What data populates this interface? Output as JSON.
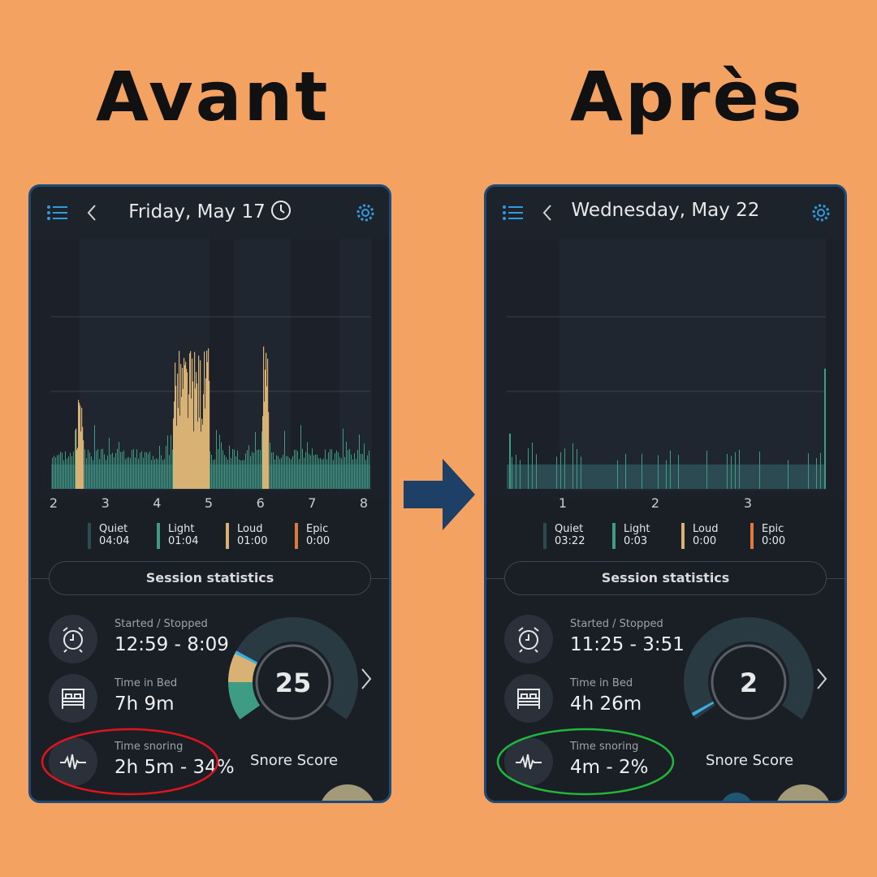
{
  "headings": {
    "before": "Avant",
    "after": "Après"
  },
  "colors": {
    "background": "#f4a261",
    "quiet": "#2c4a52",
    "light": "#3f9c84",
    "loud": "#d8b274",
    "epic": "#e07a3c",
    "marker": "#3aaee0",
    "panel_border": "#1f4a78",
    "accent_icon": "#2f9be0"
  },
  "panels": [
    {
      "title": "Friday, May 17",
      "has_clock_icon": true,
      "axis_labels": [
        "2",
        "3",
        "4",
        "5",
        "6",
        "7",
        "8"
      ],
      "legend": [
        {
          "name": "Quiet",
          "value": "04:04"
        },
        {
          "name": "Light",
          "value": "01:04"
        },
        {
          "name": "Loud",
          "value": "01:00"
        },
        {
          "name": "Epic",
          "value": "0:00"
        }
      ],
      "session_statistics": "Session statistics",
      "stats": [
        {
          "label": "Started / Stopped",
          "value": "12:59 - 8:09",
          "icon": "alarm-clock-icon"
        },
        {
          "label": "Time in Bed",
          "value": "7h 9m",
          "icon": "bed-icon"
        },
        {
          "label": "Time snoring",
          "value": "2h 5m - 34%",
          "icon": "waveform-icon"
        }
      ],
      "snore_score": "25",
      "snore_score_label": "Snore Score",
      "annotation_color": "#e0141e"
    },
    {
      "title": "Wednesday, May 22",
      "has_clock_icon": false,
      "axis_labels": [
        "1",
        "2",
        "3"
      ],
      "legend": [
        {
          "name": "Quiet",
          "value": "03:22"
        },
        {
          "name": "Light",
          "value": "0:03"
        },
        {
          "name": "Loud",
          "value": "0:00"
        },
        {
          "name": "Epic",
          "value": "0:00"
        }
      ],
      "session_statistics": "Session statistics",
      "stats": [
        {
          "label": "Started / Stopped",
          "value": "11:25 - 3:51",
          "icon": "alarm-clock-icon"
        },
        {
          "label": "Time in Bed",
          "value": "4h 26m",
          "icon": "bed-icon"
        },
        {
          "label": "Time snoring",
          "value": "4m - 2%",
          "icon": "waveform-icon"
        }
      ],
      "snore_score": "2",
      "snore_score_label": "Snore Score",
      "annotation_color": "#1fb83c"
    }
  ]
}
